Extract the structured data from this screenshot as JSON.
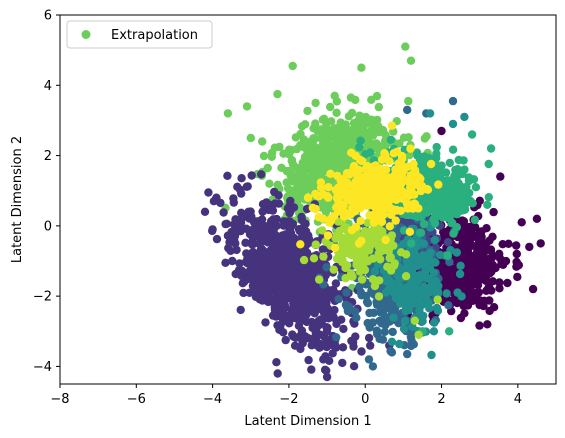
{
  "chart_data": {
    "type": "scatter",
    "xlabel": "Latent Dimension 1",
    "ylabel": "Latent Dimension 2",
    "xlim": [
      -8,
      5
    ],
    "ylim": [
      -4.5,
      6
    ],
    "xticks": [
      -8,
      -6,
      -4,
      -2,
      0,
      2,
      4
    ],
    "yticks": [
      -4,
      -2,
      0,
      2,
      4,
      6
    ],
    "grid": false,
    "legend": {
      "placement": "top-left",
      "entries": [
        "Extrapolation"
      ]
    },
    "series": [
      {
        "name": "Extrapolation",
        "color": "#6ccd5a",
        "clusters": [
          {
            "cx": -0.6,
            "cy": 1.6,
            "sx": 0.8,
            "sy": 0.75,
            "rot": 0.45,
            "n": 700
          }
        ],
        "points": [
          [
            -1.9,
            4.55
          ],
          [
            -0.1,
            4.5
          ],
          [
            1.05,
            5.1
          ],
          [
            1.2,
            4.7
          ],
          [
            -3.6,
            3.2
          ],
          [
            -3.1,
            3.4
          ],
          [
            -2.3,
            3.75
          ],
          [
            -0.8,
            3.7
          ],
          [
            -1.3,
            3.5
          ],
          [
            -2.7,
            2.4
          ],
          [
            -3.0,
            2.5
          ]
        ]
      },
      {
        "name": "",
        "color": "#440154",
        "clusters": [
          {
            "cx": 2.3,
            "cy": -1.0,
            "sx": 0.75,
            "sy": 0.7,
            "rot": 0.0,
            "n": 500
          }
        ],
        "points": [
          [
            4.5,
            0.2
          ],
          [
            4.3,
            -0.6
          ],
          [
            4.4,
            -1.8
          ],
          [
            4.1,
            0.1
          ],
          [
            4.6,
            -0.5
          ],
          [
            3.2,
            -2.8
          ],
          [
            2.0,
            2.7
          ]
        ]
      },
      {
        "name": "",
        "color": "#46337e",
        "clusters": [
          {
            "cx": -2.0,
            "cy": -1.3,
            "sx": 0.55,
            "sy": 1.1,
            "rot": 0.55,
            "n": 850
          }
        ],
        "points": [
          [
            -3.9,
            0.8
          ],
          [
            -4.2,
            0.4
          ],
          [
            -4.0,
            -0.1
          ],
          [
            -1.7,
            -3.5
          ],
          [
            -1.1,
            -3.8
          ],
          [
            -1.0,
            -4.3
          ],
          [
            -0.6,
            -3.9
          ]
        ]
      },
      {
        "name": "",
        "color": "#414487",
        "clusters": [
          {
            "cx": 1.0,
            "cy": 0.0,
            "sx": 0.45,
            "sy": 0.55,
            "rot": 0.0,
            "n": 250
          }
        ],
        "points": []
      },
      {
        "name": "",
        "color": "#31688e",
        "clusters": [
          {
            "cx": 0.6,
            "cy": -1.5,
            "sx": 0.55,
            "sy": 0.8,
            "rot": 0.2,
            "n": 350
          }
        ],
        "points": [
          [
            2.3,
            3.55
          ],
          [
            1.1,
            3.3
          ],
          [
            1.6,
            3.2
          ],
          [
            0.1,
            -3.8
          ],
          [
            0.2,
            -4.0
          ],
          [
            0.7,
            -3.6
          ],
          [
            1.1,
            -3.65
          ],
          [
            -0.2,
            0.2
          ]
        ]
      },
      {
        "name": "",
        "color": "#218f8d",
        "clusters": [
          {
            "cx": 1.3,
            "cy": -1.5,
            "sx": 0.5,
            "sy": 0.7,
            "rot": 0.0,
            "n": 180
          }
        ],
        "points": [
          [
            1.7,
            3.2
          ],
          [
            2.6,
            3.1
          ],
          [
            2.3,
            2.9
          ],
          [
            1.4,
            -3.0
          ],
          [
            0.7,
            -3.3
          ],
          [
            1.8,
            -3.0
          ]
        ]
      },
      {
        "name": "",
        "color": "#2ab07f",
        "clusters": [
          {
            "cx": 1.6,
            "cy": 1.0,
            "sx": 0.7,
            "sy": 0.45,
            "rot": -0.35,
            "n": 380
          }
        ],
        "points": [
          [
            2.8,
            2.6
          ],
          [
            3.3,
            2.2
          ],
          [
            2.6,
            1.6
          ],
          [
            2.9,
            1.1
          ],
          [
            3.2,
            0.6
          ],
          [
            2.2,
            -3.0
          ],
          [
            1.5,
            -3.0
          ]
        ]
      },
      {
        "name": "",
        "color": "#a5db36",
        "clusters": [
          {
            "cx": -0.1,
            "cy": -0.6,
            "sx": 0.45,
            "sy": 0.4,
            "rot": 0.0,
            "n": 150
          }
        ],
        "points": [
          [
            1.3,
            -2.7
          ],
          [
            1.4,
            -3.1
          ],
          [
            1.9,
            -2.1
          ]
        ]
      },
      {
        "name": "",
        "color": "#fde725",
        "clusters": [
          {
            "cx": 0.2,
            "cy": 1.0,
            "sx": 0.65,
            "sy": 0.45,
            "rot": 0.4,
            "n": 320
          }
        ],
        "points": [
          [
            0.7,
            2.85
          ],
          [
            -1.5,
            0.8
          ],
          [
            -0.9,
            0.2
          ]
        ]
      }
    ]
  }
}
